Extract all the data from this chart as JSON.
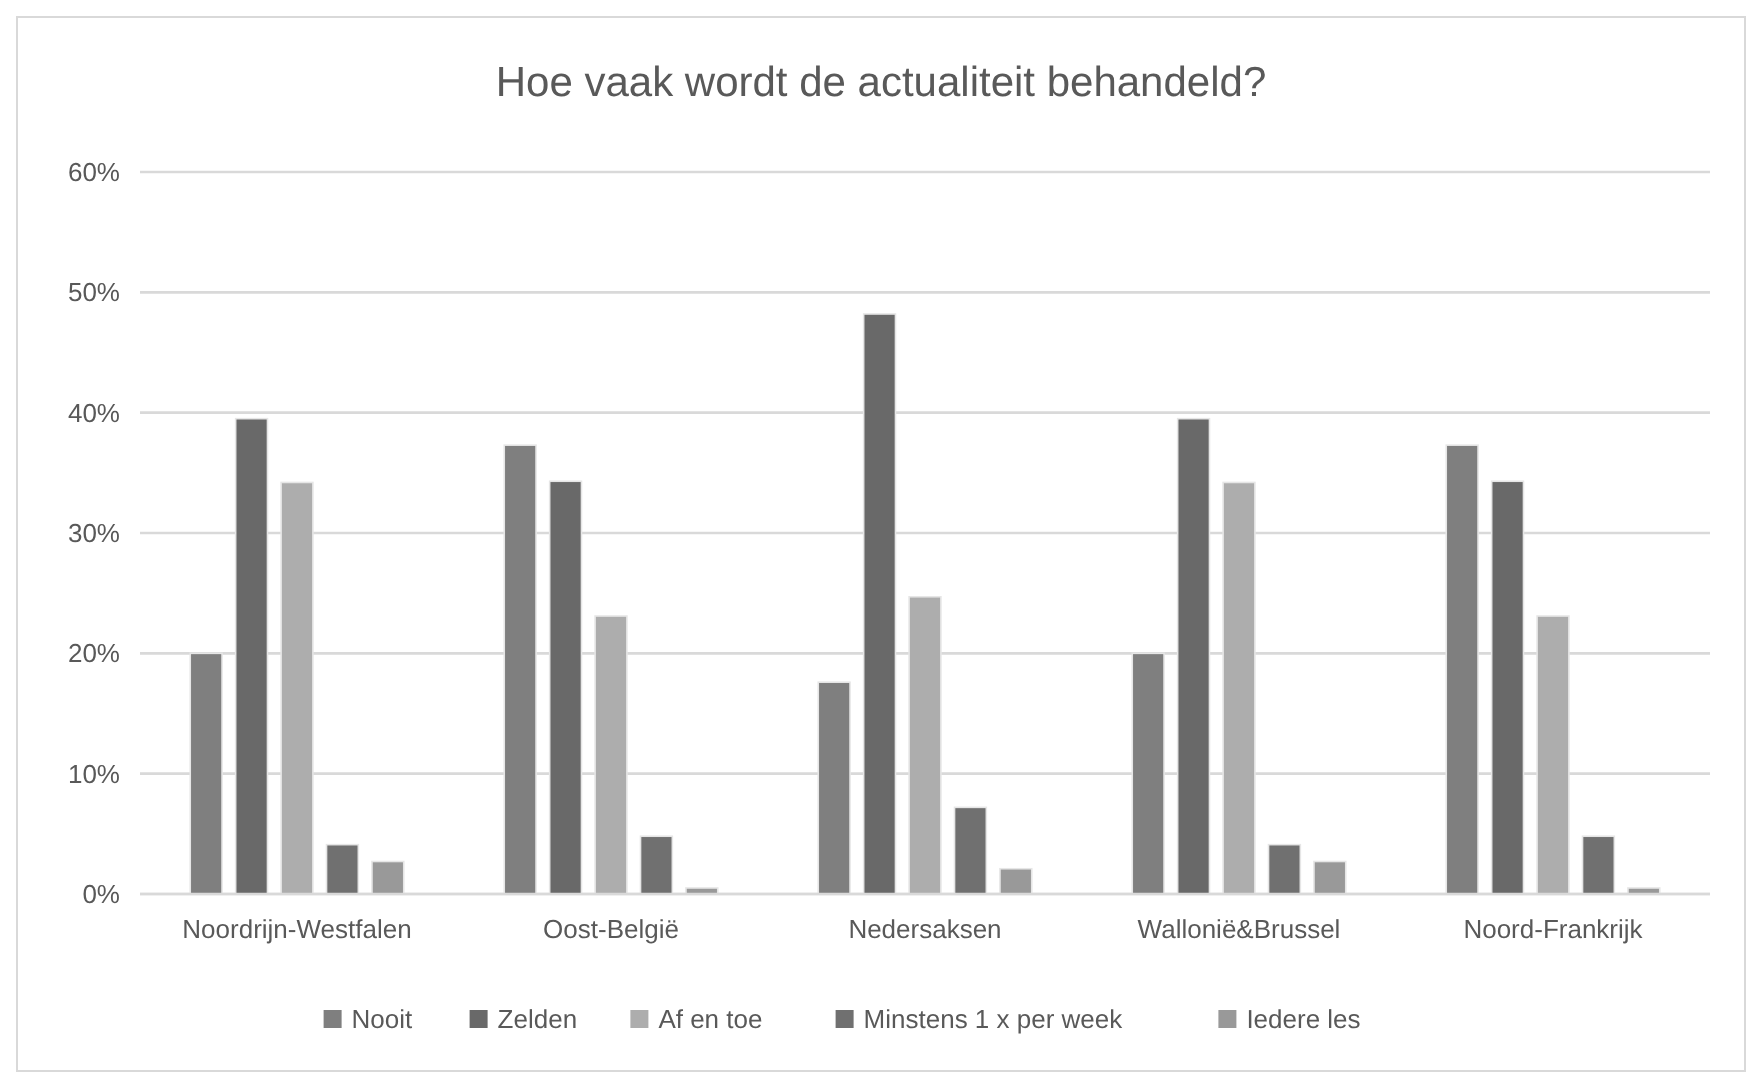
{
  "chart_data": {
    "type": "bar",
    "title": "Hoe vaak wordt de actualiteit behandeld?",
    "categories": [
      "Noordrijn-Westfalen",
      "Oost-België",
      "Nedersaksen",
      "Wallonië&Brussel",
      "Noord-Frankrijk"
    ],
    "series": [
      {
        "name": "Nooit",
        "color": "#7f7f7f",
        "values": [
          20,
          37.3,
          17.6,
          20,
          37.3
        ]
      },
      {
        "name": "Zelden",
        "color": "#696969",
        "values": [
          39.5,
          34.3,
          48.2,
          39.5,
          34.3
        ]
      },
      {
        "name": "Af en toe",
        "color": "#adadad",
        "values": [
          34.2,
          23.1,
          24.7,
          34.2,
          23.1
        ]
      },
      {
        "name": "Minstens 1 x per week",
        "color": "#707070",
        "values": [
          4.1,
          4.8,
          7.2,
          4.1,
          4.8
        ]
      },
      {
        "name": "Iedere les",
        "color": "#999999",
        "values": [
          2.7,
          0.5,
          2.1,
          2.7,
          0.5
        ]
      }
    ],
    "ylim": [
      0,
      60
    ],
    "yticks": [
      {
        "value": 0,
        "label": "0%"
      },
      {
        "value": 10,
        "label": "10%"
      },
      {
        "value": 20,
        "label": "20%"
      },
      {
        "value": 30,
        "label": "30%"
      },
      {
        "value": 40,
        "label": "40%"
      },
      {
        "value": 50,
        "label": "50%"
      },
      {
        "value": 60,
        "label": "60%"
      }
    ],
    "grid": "y",
    "legend": "bottom"
  }
}
